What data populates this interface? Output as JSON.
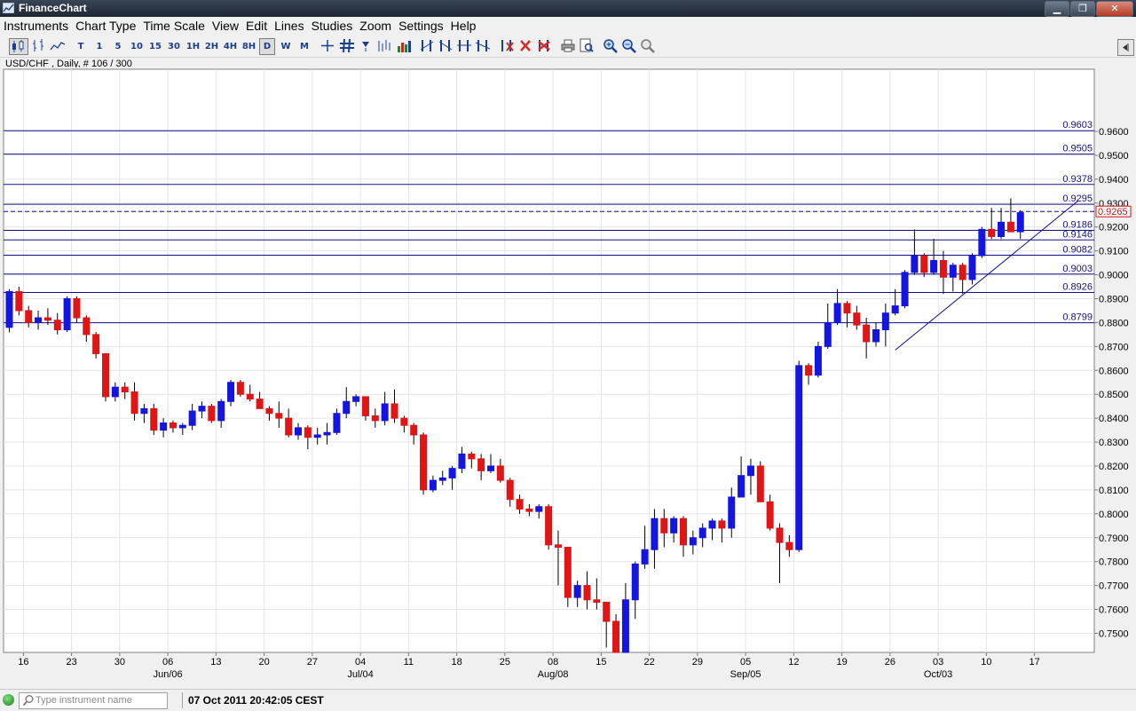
{
  "window": {
    "title": "FinanceChart",
    "controls": [
      "minimize",
      "restore",
      "close"
    ]
  },
  "menu": [
    "Instruments",
    "Chart Type",
    "Time Scale",
    "View",
    "Edit",
    "Lines",
    "Studies",
    "Zoom",
    "Settings",
    "Help"
  ],
  "toolbar": {
    "timeframes": [
      "T",
      "1",
      "5",
      "10",
      "15",
      "30",
      "1H",
      "2H",
      "4H",
      "8H",
      "D",
      "W",
      "M"
    ],
    "selected_timeframe": "D",
    "icons": [
      "candlestick-icon",
      "bar-chart-icon",
      "line-chart-icon",
      "crosshair-icon",
      "grid-icon",
      "draw-lines-icon",
      "delete-icon",
      "print-icon",
      "zoom-in-icon",
      "zoom-out-icon"
    ]
  },
  "chart_info": "USD/CHF , Daily, # 106 / 300",
  "status": {
    "search_placeholder": "Type instrument name",
    "datetime": "07 Oct 2011 20:42:05 CEST"
  },
  "chart_data": {
    "type": "candlestick",
    "instrument": "USD/CHF",
    "period": "Daily",
    "ylim": [
      0.742,
      0.986
    ],
    "y_ticks": [
      "0.7500",
      "0.7600",
      "0.7700",
      "0.7800",
      "0.7900",
      "0.8000",
      "0.8100",
      "0.8200",
      "0.8300",
      "0.8400",
      "0.8500",
      "0.8600",
      "0.8700",
      "0.8800",
      "0.8900",
      "0.9000",
      "0.9100",
      "0.9200",
      "0.9300",
      "0.9400",
      "0.9500",
      "0.9600"
    ],
    "x_ticks": [
      "16",
      "23",
      "30",
      "06",
      "13",
      "20",
      "27",
      "04",
      "11",
      "18",
      "25",
      "08",
      "15",
      "22",
      "29",
      "05",
      "12",
      "19",
      "26",
      "03",
      "10",
      "17"
    ],
    "month_labels": [
      "Jun/06",
      "Jul/04",
      "Aug/08",
      "Sep/05",
      "Oct/03"
    ],
    "horizontal_levels": [
      "0.9603",
      "0.9505",
      "0.9378",
      "0.9295",
      "0.9186",
      "0.9146",
      "0.9082",
      "0.9003",
      "0.8926",
      "0.8799"
    ],
    "current_price": "0.9265",
    "up_color": "#1515e0",
    "down_color": "#e01515",
    "trendline": {
      "from_date": "Sep 19",
      "from_price": 0.8685,
      "to_date": "Oct 12",
      "to_price": 0.931
    },
    "candles": [
      [
        0.878,
        0.894,
        0.876,
        0.893
      ],
      [
        0.893,
        0.895,
        0.883,
        0.885
      ],
      [
        0.885,
        0.887,
        0.878,
        0.88
      ],
      [
        0.88,
        0.885,
        0.877,
        0.882
      ],
      [
        0.882,
        0.886,
        0.879,
        0.881
      ],
      [
        0.881,
        0.884,
        0.875,
        0.877
      ],
      [
        0.877,
        0.891,
        0.876,
        0.89
      ],
      [
        0.89,
        0.891,
        0.88,
        0.882
      ],
      [
        0.882,
        0.883,
        0.872,
        0.875
      ],
      [
        0.875,
        0.876,
        0.865,
        0.867
      ],
      [
        0.867,
        0.867,
        0.847,
        0.849
      ],
      [
        0.849,
        0.855,
        0.847,
        0.853
      ],
      [
        0.853,
        0.855,
        0.848,
        0.851
      ],
      [
        0.851,
        0.855,
        0.839,
        0.842
      ],
      [
        0.842,
        0.846,
        0.838,
        0.844
      ],
      [
        0.844,
        0.846,
        0.833,
        0.835
      ],
      [
        0.835,
        0.84,
        0.832,
        0.838
      ],
      [
        0.838,
        0.839,
        0.834,
        0.836
      ],
      [
        0.836,
        0.838,
        0.833,
        0.837
      ],
      [
        0.837,
        0.846,
        0.835,
        0.843
      ],
      [
        0.843,
        0.847,
        0.84,
        0.845
      ],
      [
        0.845,
        0.846,
        0.838,
        0.839
      ],
      [
        0.839,
        0.848,
        0.836,
        0.847
      ],
      [
        0.847,
        0.856,
        0.845,
        0.855
      ],
      [
        0.855,
        0.856,
        0.849,
        0.85
      ],
      [
        0.85,
        0.854,
        0.847,
        0.848
      ],
      [
        0.848,
        0.851,
        0.844,
        0.844
      ],
      [
        0.844,
        0.845,
        0.839,
        0.842
      ],
      [
        0.842,
        0.847,
        0.836,
        0.84
      ],
      [
        0.84,
        0.844,
        0.832,
        0.833
      ],
      [
        0.833,
        0.838,
        0.831,
        0.836
      ],
      [
        0.836,
        0.837,
        0.827,
        0.832
      ],
      [
        0.832,
        0.836,
        0.829,
        0.833
      ],
      [
        0.833,
        0.838,
        0.829,
        0.834
      ],
      [
        0.834,
        0.844,
        0.833,
        0.842
      ],
      [
        0.842,
        0.853,
        0.84,
        0.847
      ],
      [
        0.847,
        0.85,
        0.845,
        0.849
      ],
      [
        0.849,
        0.849,
        0.839,
        0.841
      ],
      [
        0.841,
        0.844,
        0.836,
        0.839
      ],
      [
        0.839,
        0.851,
        0.837,
        0.846
      ],
      [
        0.846,
        0.852,
        0.838,
        0.84
      ],
      [
        0.84,
        0.841,
        0.834,
        0.837
      ],
      [
        0.837,
        0.838,
        0.829,
        0.833
      ],
      [
        0.833,
        0.834,
        0.808,
        0.81
      ],
      [
        0.81,
        0.816,
        0.809,
        0.814
      ],
      [
        0.814,
        0.818,
        0.812,
        0.815
      ],
      [
        0.815,
        0.82,
        0.81,
        0.819
      ],
      [
        0.819,
        0.828,
        0.817,
        0.825
      ],
      [
        0.825,
        0.826,
        0.819,
        0.823
      ],
      [
        0.823,
        0.825,
        0.814,
        0.818
      ],
      [
        0.818,
        0.825,
        0.817,
        0.82
      ],
      [
        0.82,
        0.823,
        0.813,
        0.814
      ],
      [
        0.814,
        0.815,
        0.803,
        0.806
      ],
      [
        0.806,
        0.808,
        0.8,
        0.802
      ],
      [
        0.802,
        0.804,
        0.799,
        0.801
      ],
      [
        0.801,
        0.804,
        0.798,
        0.803
      ],
      [
        0.803,
        0.804,
        0.785,
        0.787
      ],
      [
        0.787,
        0.793,
        0.77,
        0.786
      ],
      [
        0.786,
        0.786,
        0.761,
        0.765
      ],
      [
        0.765,
        0.772,
        0.761,
        0.77
      ],
      [
        0.77,
        0.776,
        0.76,
        0.764
      ],
      [
        0.764,
        0.773,
        0.76,
        0.763
      ],
      [
        0.763,
        0.763,
        0.744,
        0.755
      ],
      [
        0.755,
        0.758,
        0.742,
        0.742
      ],
      [
        0.742,
        0.771,
        0.742,
        0.764
      ],
      [
        0.764,
        0.78,
        0.756,
        0.779
      ],
      [
        0.779,
        0.795,
        0.777,
        0.785
      ],
      [
        0.785,
        0.802,
        0.777,
        0.798
      ],
      [
        0.798,
        0.802,
        0.786,
        0.792
      ],
      [
        0.792,
        0.799,
        0.788,
        0.798
      ],
      [
        0.798,
        0.799,
        0.782,
        0.787
      ],
      [
        0.787,
        0.793,
        0.783,
        0.79
      ],
      [
        0.79,
        0.796,
        0.786,
        0.794
      ],
      [
        0.794,
        0.798,
        0.789,
        0.797
      ],
      [
        0.797,
        0.798,
        0.788,
        0.794
      ],
      [
        0.794,
        0.811,
        0.79,
        0.807
      ],
      [
        0.807,
        0.824,
        0.807,
        0.816
      ],
      [
        0.816,
        0.823,
        0.808,
        0.82
      ],
      [
        0.82,
        0.822,
        0.805,
        0.805
      ],
      [
        0.805,
        0.808,
        0.793,
        0.794
      ],
      [
        0.794,
        0.796,
        0.771,
        0.788
      ],
      [
        0.788,
        0.791,
        0.782,
        0.785
      ],
      [
        0.785,
        0.864,
        0.784,
        0.862
      ],
      [
        0.862,
        0.863,
        0.854,
        0.858
      ],
      [
        0.858,
        0.872,
        0.857,
        0.87
      ],
      [
        0.87,
        0.888,
        0.869,
        0.88
      ],
      [
        0.88,
        0.894,
        0.879,
        0.888
      ],
      [
        0.888,
        0.889,
        0.878,
        0.884
      ],
      [
        0.884,
        0.887,
        0.877,
        0.879
      ],
      [
        0.879,
        0.882,
        0.865,
        0.872
      ],
      [
        0.872,
        0.88,
        0.87,
        0.877
      ],
      [
        0.877,
        0.888,
        0.87,
        0.884
      ],
      [
        0.884,
        0.894,
        0.883,
        0.887
      ],
      [
        0.887,
        0.902,
        0.886,
        0.901
      ],
      [
        0.901,
        0.919,
        0.9,
        0.908
      ],
      [
        0.908,
        0.909,
        0.899,
        0.901
      ],
      [
        0.901,
        0.915,
        0.9,
        0.906
      ],
      [
        0.906,
        0.91,
        0.892,
        0.899
      ],
      [
        0.899,
        0.905,
        0.893,
        0.904
      ],
      [
        0.904,
        0.905,
        0.892,
        0.898
      ],
      [
        0.898,
        0.909,
        0.896,
        0.908
      ],
      [
        0.908,
        0.92,
        0.907,
        0.919
      ],
      [
        0.919,
        0.928,
        0.915,
        0.916
      ],
      [
        0.916,
        0.928,
        0.915,
        0.922
      ],
      [
        0.922,
        0.932,
        0.918,
        0.918
      ],
      [
        0.918,
        0.927,
        0.915,
        0.926
      ]
    ]
  }
}
